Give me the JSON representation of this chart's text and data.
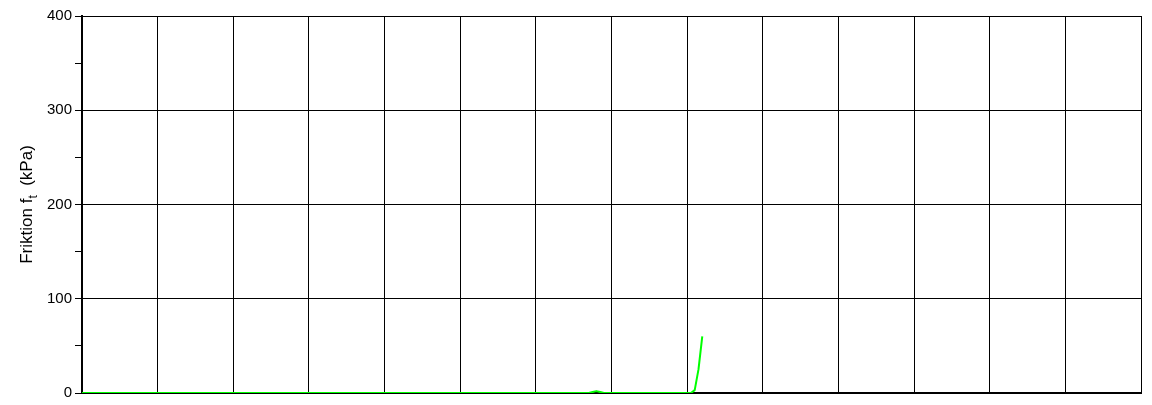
{
  "chart_data": {
    "type": "line",
    "ylabel": "Friktion f$_{t}$  (kPa)",
    "categories": [
      null,
      null,
      null,
      null,
      null,
      null,
      null,
      null,
      null,
      null,
      null,
      null,
      null,
      null,
      null,
      null,
      null,
      null,
      null,
      null,
      null,
      null,
      null,
      null,
      null,
      null,
      null,
      null,
      null,
      null,
      null,
      null,
      null,
      null,
      null,
      null,
      null,
      null,
      null,
      null,
      null,
      null,
      null,
      null,
      null,
      null,
      null,
      null,
      null,
      null,
      null,
      null,
      null,
      null,
      null,
      null,
      null,
      null,
      null,
      null,
      null,
      null,
      null,
      null,
      null,
      null,
      null,
      null,
      null,
      null,
      null,
      null,
      null,
      null,
      null,
      null,
      null,
      null,
      null,
      null,
      null,
      null,
      null,
      null,
      null,
      null,
      null,
      null,
      null,
      null,
      null,
      null,
      null,
      null,
      null,
      null,
      null,
      null,
      null,
      null,
      null,
      null,
      null,
      null,
      null,
      null,
      null,
      null,
      null,
      null,
      null,
      null,
      null,
      null,
      null,
      null,
      null,
      null,
      null,
      null,
      null,
      null,
      null,
      null,
      null,
      null,
      null,
      null,
      null,
      null,
      null,
      null,
      null,
      null,
      null,
      null,
      null,
      null,
      null,
      null,
      null,
      null,
      null,
      null,
      null,
      null,
      null,
      null,
      null,
      null,
      null,
      null,
      null,
      null,
      null,
      null,
      null,
      null,
      null,
      null,
      null,
      null,
      null,
      null,
      null,
      null,
      null,
      null,
      null,
      null,
      null,
      null,
      null,
      null,
      null,
      null,
      null,
      null,
      null,
      null,
      null,
      null,
      null,
      null,
      null,
      null,
      null,
      null,
      null,
      null,
      null,
      null,
      null,
      null,
      null,
      null,
      null,
      null,
      null,
      null,
      null,
      null,
      null,
      null,
      null,
      null,
      null,
      null,
      null,
      null,
      null,
      null,
      null,
      null,
      null,
      null,
      null,
      null,
      null,
      null,
      null,
      null,
      null,
      null,
      null,
      null,
      null,
      null,
      null,
      null,
      null,
      null,
      null,
      null,
      null,
      null,
      null,
      null,
      null,
      null,
      null,
      null,
      null,
      null,
      null,
      null,
      null,
      null,
      null,
      null,
      null,
      null,
      null,
      null,
      null,
      null,
      null,
      null,
      null,
      null,
      null,
      null,
      null,
      null,
      null,
      null,
      null,
      null,
      null,
      null,
      null,
      null,
      null,
      null,
      null,
      null,
      null,
      null,
      null,
      null,
      null
    ],
    "series": [
      {
        "color": "#00ff00",
        "values": [
          0,
          0,
          0,
          0,
          0,
          0,
          0,
          0,
          0,
          0,
          0,
          0,
          0,
          0,
          0,
          0,
          0,
          0,
          0,
          0,
          0,
          0,
          0,
          0,
          0,
          0,
          0,
          0,
          0,
          0,
          0,
          0,
          0,
          0,
          0,
          0,
          0,
          0,
          0,
          0,
          0,
          0,
          0,
          0,
          0,
          0,
          0,
          0,
          0,
          0,
          0,
          0,
          0,
          0,
          0,
          0,
          0,
          0,
          0,
          0,
          0,
          0,
          0,
          0,
          0,
          0,
          0,
          0,
          0,
          0,
          0,
          0,
          0,
          0,
          0,
          0,
          0,
          0,
          0,
          0,
          0,
          0,
          0,
          0,
          0,
          0,
          0,
          0,
          0,
          0,
          0,
          0,
          0,
          0,
          0,
          0,
          0,
          0,
          0,
          0,
          0,
          0,
          0,
          0,
          0,
          0,
          0,
          0,
          0,
          0,
          0,
          0,
          0,
          0,
          0,
          0,
          0,
          0,
          0,
          0,
          0,
          0,
          0,
          0,
          0,
          0,
          0,
          0,
          0,
          0,
          0,
          0,
          0,
          0,
          0,
          1,
          2,
          1,
          0,
          0,
          0,
          0,
          0,
          0,
          0,
          0,
          0,
          0,
          0,
          0,
          0,
          0,
          0,
          0,
          0,
          0,
          0,
          0,
          0,
          0,
          0,
          0,
          3,
          25,
          60,
          null,
          null,
          null,
          null,
          null,
          null,
          null,
          null,
          null,
          null,
          null,
          null,
          null,
          null,
          null,
          null,
          null,
          null,
          null,
          null,
          null,
          null,
          null,
          null,
          null,
          null,
          null,
          null,
          null,
          null,
          null,
          null,
          null,
          null,
          null,
          null,
          null,
          null,
          null,
          null,
          null,
          null,
          null,
          null,
          null,
          null,
          null,
          null,
          null,
          null,
          null,
          null,
          null,
          null,
          null,
          null,
          null,
          null,
          null,
          null,
          null,
          null,
          null,
          null,
          null,
          null,
          null,
          null,
          null,
          null,
          null,
          null,
          null,
          null,
          null,
          null,
          null,
          null,
          null,
          null,
          null,
          null,
          null,
          null,
          null,
          null,
          null,
          null,
          null,
          null,
          null,
          null,
          null,
          null,
          null,
          null,
          null,
          null,
          null,
          null,
          null,
          null,
          null,
          null,
          null,
          null,
          null,
          null,
          null,
          null,
          null,
          null,
          null,
          null,
          null,
          null
        ]
      }
    ],
    "ylim": [
      0,
      400
    ],
    "yticks": [
      0,
      {
        "value": 50,
        "label": null
      },
      100,
      {
        "value": 150,
        "label": null
      },
      200,
      {
        "value": 250,
        "label": null
      },
      300,
      {
        "value": 350,
        "label": null
      },
      400
    ],
    "grid": true,
    "tick_labels": "y",
    "marker": "none",
    "line_style": "solid",
    "legend": false
  }
}
